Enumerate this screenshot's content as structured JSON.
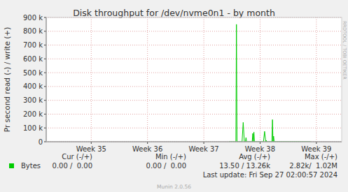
{
  "chart_data": {
    "type": "line",
    "title": "Disk throughput for /dev/nvme0n1 - by month",
    "y_label": "Pr second read (-) / write (+)",
    "watermark": "RRDTOOL / TOBI OETIKER",
    "x": [
      37.45,
      37.57,
      37.58,
      37.59,
      37.68,
      37.7,
      37.72,
      37.74,
      37.75,
      37.76,
      37.86,
      37.87,
      37.88,
      37.89,
      37.9,
      38.06,
      38.08,
      38.1,
      38.11,
      38.12,
      38.21,
      38.22,
      38.23,
      38.24,
      38.25,
      38.9
    ],
    "series": [
      {
        "name": "Bytes",
        "color": "#00cc00",
        "values": [
          0,
          0,
          850000,
          0,
          0,
          140000,
          0,
          0,
          30000,
          0,
          0,
          60000,
          0,
          70000,
          0,
          0,
          75000,
          0,
          10000,
          0,
          0,
          160000,
          0,
          40000,
          0,
          0
        ]
      }
    ],
    "xlim": [
      34.2,
      39.45
    ],
    "xticks": [
      {
        "value": 35,
        "label": "Week 35"
      },
      {
        "value": 36,
        "label": "Week 36"
      },
      {
        "value": 37,
        "label": "Week 37"
      },
      {
        "value": 38,
        "label": "Week 38"
      },
      {
        "value": 39,
        "label": "Week 39"
      }
    ],
    "ylim": [
      0,
      900000
    ],
    "yticks": [
      0,
      {
        "value": 100000,
        "label": "100 k"
      },
      {
        "value": 200000,
        "label": "200 k"
      },
      {
        "value": 300000,
        "label": "300 k"
      },
      {
        "value": 400000,
        "label": "400 k"
      },
      {
        "value": 500000,
        "label": "500 k"
      },
      {
        "value": 600000,
        "label": "600 k"
      },
      {
        "value": 700000,
        "label": "700 k"
      },
      {
        "value": 800000,
        "label": "800 k"
      },
      {
        "value": 900000,
        "label": "900 k"
      }
    ],
    "grid": true,
    "summary": {
      "columns": [
        "Cur (-/+)",
        "Min (-/+)",
        "Avg (-/+)",
        "Max (-/+)"
      ],
      "values": [
        "0.00 /  0.00",
        "0.00 /  0.00",
        "13.50 / 13.26k",
        "2.82k/  1.02M"
      ]
    },
    "last_update": "Last update: Fri Sep 27 02:00:57 2024",
    "footer": "Munin 2.0.56"
  }
}
